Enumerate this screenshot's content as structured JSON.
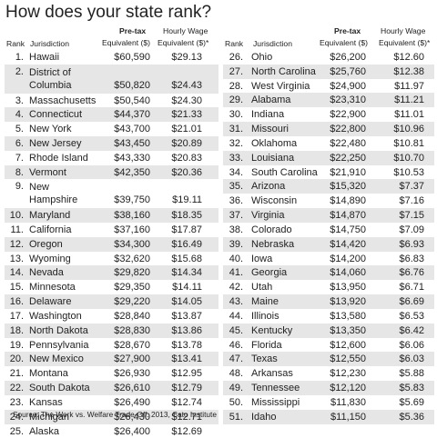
{
  "title": "How does your state rank?",
  "headers": {
    "rank": "Rank",
    "jurisdiction": "Jurisdiction",
    "pretax_line1": "Pre-tax",
    "pretax_line2": "Equivalent ($)",
    "wage_line1": "Hourly Wage",
    "wage_line2": "Equivalent ($)*"
  },
  "rows": [
    {
      "rank": "1.",
      "name": "Hawaii",
      "pretax": "$60,590",
      "wage": "$29.13"
    },
    {
      "rank": "2.",
      "name": "District of Columbia",
      "name_lines": [
        "District of",
        "Columbia"
      ],
      "pretax": "$50,820",
      "wage": "$24.43"
    },
    {
      "rank": "3.",
      "name": "Massachusetts",
      "pretax": "$50,540",
      "wage": "$24.30"
    },
    {
      "rank": "4.",
      "name": "Connecticut",
      "pretax": "$44,370",
      "wage": "$21.33"
    },
    {
      "rank": "5.",
      "name": "New York",
      "pretax": "$43,700",
      "wage": "$21.01"
    },
    {
      "rank": "6.",
      "name": "New Jersey",
      "pretax": "$43,450",
      "wage": "$20.89"
    },
    {
      "rank": "7.",
      "name": "Rhode Island",
      "pretax": "$43,330",
      "wage": "$20.83"
    },
    {
      "rank": "8.",
      "name": "Vermont",
      "pretax": "$42,350",
      "wage": "$20.36"
    },
    {
      "rank": "9.",
      "name": "New Hampshire",
      "name_lines": [
        "New",
        "Hampshire"
      ],
      "pretax": "$39,750",
      "wage": "$19.11"
    },
    {
      "rank": "10.",
      "name": "Maryland",
      "pretax": "$38,160",
      "wage": "$18.35"
    },
    {
      "rank": "11.",
      "name": "California",
      "pretax": "$37,160",
      "wage": "$17.87"
    },
    {
      "rank": "12.",
      "name": "Oregon",
      "pretax": "$34,300",
      "wage": "$16.49"
    },
    {
      "rank": "13.",
      "name": "Wyoming",
      "pretax": "$32,620",
      "wage": "$15.68"
    },
    {
      "rank": "14.",
      "name": "Nevada",
      "pretax": "$29,820",
      "wage": "$14.34"
    },
    {
      "rank": "15.",
      "name": "Minnesota",
      "pretax": "$29,350",
      "wage": "$14.11"
    },
    {
      "rank": "16.",
      "name": "Delaware",
      "pretax": "$29,220",
      "wage": "$14.05"
    },
    {
      "rank": "17.",
      "name": "Washington",
      "pretax": "$28,840",
      "wage": "$13.87"
    },
    {
      "rank": "18.",
      "name": "North Dakota",
      "pretax": "$28,830",
      "wage": "$13.86"
    },
    {
      "rank": "19.",
      "name": "Pennsylvania",
      "pretax": "$28,670",
      "wage": "$13.78"
    },
    {
      "rank": "20.",
      "name": "New Mexico",
      "pretax": "$27,900",
      "wage": "$13.41"
    },
    {
      "rank": "21.",
      "name": "Montana",
      "pretax": "$26,930",
      "wage": "$12.95"
    },
    {
      "rank": "22.",
      "name": "South Dakota",
      "pretax": "$26,610",
      "wage": "$12.79"
    },
    {
      "rank": "23.",
      "name": "Kansas",
      "pretax": "$26,490",
      "wage": "$12.74"
    },
    {
      "rank": "24.",
      "name": "Michigan",
      "pretax": "$26,430",
      "wage": "$12.71"
    },
    {
      "rank": "25.",
      "name": "Alaska",
      "pretax": "$26,400",
      "wage": "$12.69"
    },
    {
      "rank": "26.",
      "name": "Ohio",
      "pretax": "$26,200",
      "wage": "$12.60"
    },
    {
      "rank": "27.",
      "name": "North Carolina",
      "pretax": "$25,760",
      "wage": "$12.38"
    },
    {
      "rank": "28.",
      "name": "West Virginia",
      "pretax": "$24,900",
      "wage": "$11.97"
    },
    {
      "rank": "29.",
      "name": "Alabama",
      "pretax": "$23,310",
      "wage": "$11.21"
    },
    {
      "rank": "30.",
      "name": "Indiana",
      "pretax": "$22,900",
      "wage": "$11.01"
    },
    {
      "rank": "31.",
      "name": "Missouri",
      "pretax": "$22,800",
      "wage": "$10.96"
    },
    {
      "rank": "32.",
      "name": "Oklahoma",
      "pretax": "$22,480",
      "wage": "$10.81"
    },
    {
      "rank": "33.",
      "name": "Louisiana",
      "pretax": "$22,250",
      "wage": "$10.70"
    },
    {
      "rank": "34.",
      "name": "South Carolina",
      "pretax": "$21,910",
      "wage": "$10.53"
    },
    {
      "rank": "35.",
      "name": "Arizona",
      "pretax": "$15,320",
      "wage": "$7.37"
    },
    {
      "rank": "36.",
      "name": "Wisconsin",
      "pretax": "$14,890",
      "wage": "$7.16"
    },
    {
      "rank": "37.",
      "name": "Virginia",
      "pretax": "$14,870",
      "wage": "$7.15"
    },
    {
      "rank": "38.",
      "name": "Colorado",
      "pretax": "$14,750",
      "wage": "$7.09"
    },
    {
      "rank": "39.",
      "name": "Nebraska",
      "pretax": "$14,420",
      "wage": "$6.93"
    },
    {
      "rank": "40.",
      "name": "Iowa",
      "pretax": "$14,200",
      "wage": "$6.83"
    },
    {
      "rank": "41.",
      "name": "Georgia",
      "pretax": "$14,060",
      "wage": "$6.76"
    },
    {
      "rank": "42.",
      "name": "Utah",
      "pretax": "$13,950",
      "wage": "$6.71"
    },
    {
      "rank": "43.",
      "name": "Maine",
      "pretax": "$13,920",
      "wage": "$6.69"
    },
    {
      "rank": "44.",
      "name": "Illinois",
      "pretax": "$13,580",
      "wage": "$6.53"
    },
    {
      "rank": "45.",
      "name": "Kentucky",
      "pretax": "$13,350",
      "wage": "$6.42"
    },
    {
      "rank": "46.",
      "name": "Florida",
      "pretax": "$12,600",
      "wage": "$6.06"
    },
    {
      "rank": "47.",
      "name": "Texas",
      "pretax": "$12,550",
      "wage": "$6.03"
    },
    {
      "rank": "48.",
      "name": "Arkansas",
      "pretax": "$12,230",
      "wage": "$5.88"
    },
    {
      "rank": "49.",
      "name": "Tennessee",
      "pretax": "$12,120",
      "wage": "$5.83"
    },
    {
      "rank": "50.",
      "name": "Mississippi",
      "pretax": "$11,830",
      "wage": "$5.69"
    },
    {
      "rank": "51.",
      "name": "Idaho",
      "pretax": "$11,150",
      "wage": "$5.36"
    }
  ],
  "source": "Source: The Work vs. Welfare Trade-Off: 2013, Cato Institute",
  "colors": {
    "shade": "#e6e6e6",
    "text": "#222222"
  }
}
